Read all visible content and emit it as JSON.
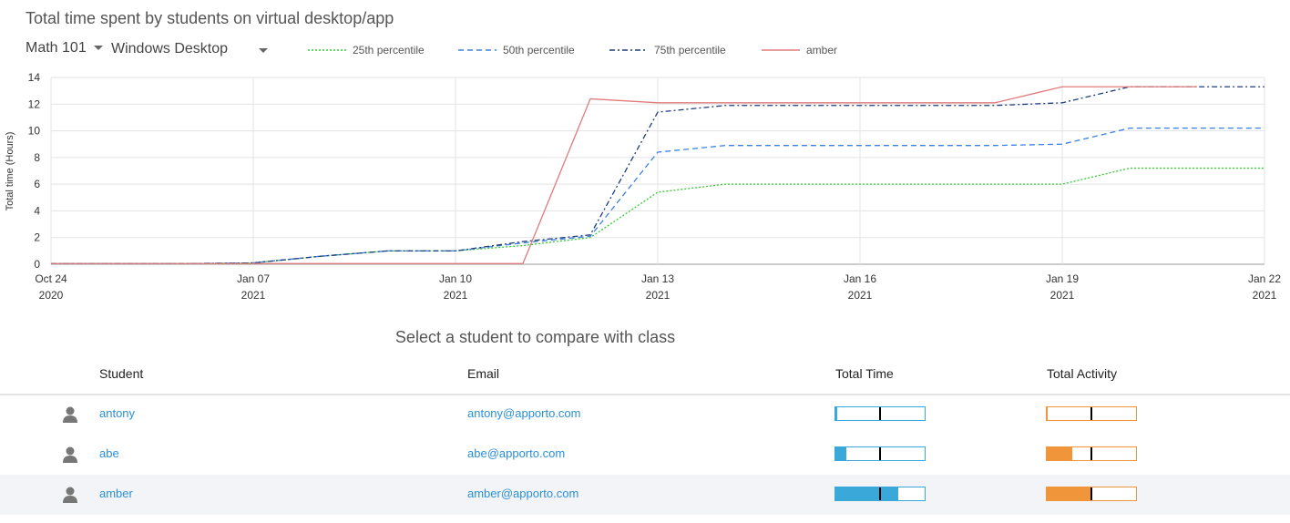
{
  "header": {
    "title": "Total time spent by students on virtual desktop/app",
    "course": "Math 101",
    "desktop": "Windows Desktop"
  },
  "chart_data": {
    "type": "line",
    "y_label": "Total time (Hours)",
    "categories": [
      "Oct 24",
      null,
      null,
      "Jan 07",
      null,
      null,
      "Jan 10",
      null,
      null,
      "Jan 13",
      null,
      null,
      "Jan 16",
      null,
      null,
      "Jan 19",
      null,
      null,
      "Jan 22"
    ],
    "category_years": [
      "2020",
      null,
      null,
      "2021",
      null,
      null,
      "2021",
      null,
      null,
      "2021",
      null,
      null,
      "2021",
      null,
      null,
      "2021",
      null,
      null,
      "2021"
    ],
    "series": [
      {
        "name": "25th percentile",
        "color": "#33cc33",
        "dash": "dotted",
        "values": [
          0.05,
          0.05,
          0.05,
          0.1,
          0.6,
          1.0,
          1.0,
          1.4,
          2.0,
          5.4,
          6.0,
          6.0,
          6.0,
          6.0,
          6.0,
          6.0,
          7.2,
          7.2,
          7.2
        ]
      },
      {
        "name": "50th percentile",
        "color": "#3b82e0",
        "dash": "dashed",
        "values": [
          0.05,
          0.05,
          0.05,
          0.1,
          0.6,
          1.0,
          1.0,
          1.6,
          2.1,
          8.4,
          8.9,
          8.9,
          8.9,
          8.9,
          8.9,
          9.0,
          10.2,
          10.2,
          10.2
        ]
      },
      {
        "name": "75th percentile",
        "color": "#1f3d7a",
        "dash": "dashdot",
        "values": [
          0.05,
          0.05,
          0.05,
          0.1,
          0.6,
          1.0,
          1.0,
          1.7,
          2.2,
          11.4,
          11.9,
          11.9,
          11.9,
          11.9,
          11.9,
          12.1,
          13.3,
          13.3,
          13.3
        ]
      },
      {
        "name": "amber",
        "color": "#e07b7b",
        "dash": "solid",
        "values": [
          0.05,
          0.05,
          0.05,
          0.05,
          0.05,
          0.05,
          0.05,
          0.05,
          12.4,
          12.1,
          12.1,
          12.1,
          12.1,
          12.1,
          12.1,
          13.3,
          13.3,
          13.3,
          null
        ]
      }
    ],
    "ylim": [
      0,
      14
    ],
    "yticks": [
      0,
      2,
      4,
      6,
      8,
      10,
      12,
      14
    ],
    "grid": true
  },
  "table": {
    "title": "Select a student to compare with class",
    "columns": [
      "Student",
      "Email",
      "Total Time",
      "Total Activity"
    ],
    "bar_range": [
      0,
      100
    ],
    "time_color": "#3aa8d8",
    "activity_color": "#f0953a",
    "selected_row": 2,
    "rows": [
      {
        "student": "antony",
        "email": "antony@apporto.com",
        "total_time": 2,
        "class_time": 50,
        "total_activity": 1,
        "class_activity": 50
      },
      {
        "student": "abe",
        "email": "abe@apporto.com",
        "total_time": 12,
        "class_time": 50,
        "total_activity": 29,
        "class_activity": 50
      },
      {
        "student": "amber",
        "email": "amber@apporto.com",
        "total_time": 70,
        "class_time": 50,
        "total_activity": 50,
        "class_activity": 50
      }
    ]
  }
}
